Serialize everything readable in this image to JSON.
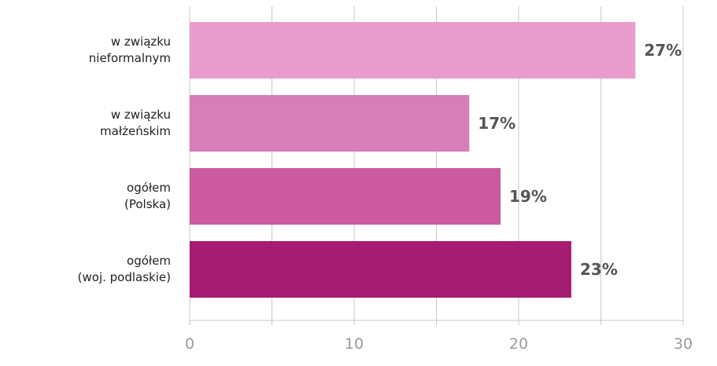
{
  "chart_data": {
    "type": "bar",
    "orientation": "horizontal",
    "categories": [
      "w związku\nnieformalnym",
      "w związku\nmałżeńskim",
      "ogółem\n(Polska)",
      "ogółem\n(woj. podlaskie)"
    ],
    "values": [
      27.1,
      17,
      18.9,
      23.2
    ],
    "value_labels": [
      "27%",
      "17%",
      "19%",
      "23%"
    ],
    "colors": [
      "#e99dcc",
      "#d77db7",
      "#cb5aa0",
      "#a61c72"
    ],
    "xlim": [
      0,
      30
    ],
    "xticks": [
      0,
      10,
      20,
      30
    ],
    "minor_xticks": [
      5,
      15,
      25
    ],
    "grid": true
  }
}
